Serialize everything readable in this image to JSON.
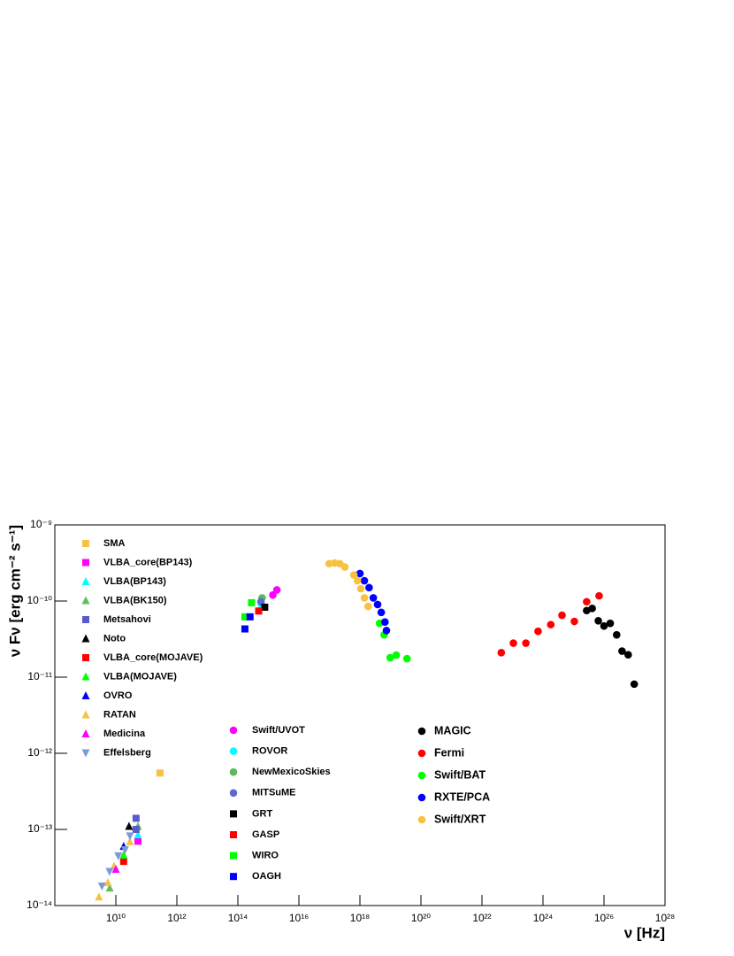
{
  "chart_data": {
    "type": "scatter",
    "x_label": "ν [Hz]",
    "y_label": "ν Fν [erg cm⁻² s⁻¹]",
    "log_x": true,
    "log_y": true,
    "grid": false,
    "xlim": [
      100000000.0,
      1e+28
    ],
    "ylim": [
      1e-14,
      1e-09
    ],
    "xticks": [
      {
        "value": 10000000000.0,
        "label": "10¹⁰"
      },
      {
        "value": 1000000000000.0,
        "label": "10¹²"
      },
      {
        "value": 100000000000000.0,
        "label": "10¹⁴"
      },
      {
        "value": 1e+16,
        "label": "10¹⁶"
      },
      {
        "value": 1e+18,
        "label": "10¹⁸"
      },
      {
        "value": 1e+20,
        "label": "10²⁰"
      },
      {
        "value": 1e+22,
        "label": "10²²"
      },
      {
        "value": 1e+24,
        "label": "10²⁴"
      },
      {
        "value": 1e+26,
        "label": "10²⁶"
      },
      {
        "value": 1e+28,
        "label": "10²⁸"
      }
    ],
    "yticks": [
      {
        "value": 1e-14,
        "label": "10⁻¹⁴"
      },
      {
        "value": 1e-13,
        "label": "10⁻¹³"
      },
      {
        "value": 1e-12,
        "label": "10⁻¹²"
      },
      {
        "value": 1e-11,
        "label": "10⁻¹¹"
      },
      {
        "value": 1e-10,
        "label": "10⁻¹⁰"
      },
      {
        "value": 1e-09,
        "label": "10⁻⁹"
      }
    ],
    "series": [
      {
        "name": "SMA",
        "color": "#f5c242",
        "marker": "square",
        "x": [
          280000000000.0
        ],
        "values": [
          5.5e-13
        ]
      },
      {
        "name": "VLBA_core(BP143)",
        "color": "#ff00ff",
        "marker": "square",
        "x": [
          53000000000.0
        ],
        "values": [
          7e-14
        ]
      },
      {
        "name": "VLBA(BP143)",
        "color": "#00ffff",
        "marker": "triangle",
        "x": [
          53000000000.0
        ],
        "values": [
          8.5e-14
        ]
      },
      {
        "name": "VLBA(BK150)",
        "color": "#5fbf5f",
        "marker": "triangle",
        "x": [
          6300000000.0,
          53000000000.0
        ],
        "values": [
          1.7e-14,
          1.1e-13
        ]
      },
      {
        "name": "Metsahovi",
        "color": "#5a5acd",
        "marker": "square",
        "x": [
          46000000000.0,
          46000000000.0
        ],
        "values": [
          1.4e-13,
          1e-13
        ]
      },
      {
        "name": "Noto",
        "color": "#000000",
        "marker": "triangle",
        "x": [
          27000000000.0
        ],
        "values": [
          1.1e-13
        ]
      },
      {
        "name": "VLBA_core(MOJAVE)",
        "color": "#ff0000",
        "marker": "square",
        "x": [
          18000000000.0
        ],
        "values": [
          3.8e-14
        ]
      },
      {
        "name": "VLBA(MOJAVE)",
        "color": "#00ff00",
        "marker": "triangle",
        "x": [
          18000000000.0
        ],
        "values": [
          4.6e-14
        ]
      },
      {
        "name": "OVRO",
        "color": "#0000ff",
        "marker": "triangle",
        "x": [
          18000000000.0
        ],
        "values": [
          6e-14
        ]
      },
      {
        "name": "RATAN",
        "color": "#f5c242",
        "marker": "triangle",
        "x": [
          2800000000.0,
          5500000000.0,
          8700000000.0,
          29000000000.0
        ],
        "values": [
          1.3e-14,
          2e-14,
          3.3e-14,
          6.9e-14
        ]
      },
      {
        "name": "Medicina",
        "color": "#ff00ff",
        "marker": "triangle",
        "x": [
          10000000000.0
        ],
        "values": [
          3e-14
        ]
      },
      {
        "name": "Effelsberg",
        "color": "#7b9bd6",
        "marker": "triangle-down",
        "x": [
          3500000000.0,
          6200000000.0,
          12000000000.0,
          20000000000.0,
          29000000000.0
        ],
        "values": [
          1.8e-14,
          2.8e-14,
          4.5e-14,
          5.4e-14,
          8.2e-14
        ]
      },
      {
        "name": "Swift/UVOT",
        "color": "#ff00ff",
        "marker": "circle",
        "x": [
          1400000000000000.0,
          1900000000000000.0
        ],
        "values": [
          1.2e-10,
          1.4e-10
        ]
      },
      {
        "name": "ROVOR",
        "color": "#00ffff",
        "marker": "circle",
        "x": [
          590000000000000.0
        ],
        "values": [
          9e-11
        ]
      },
      {
        "name": "NewMexicoSkies",
        "color": "#5cb85c",
        "marker": "circle",
        "x": [
          620000000000000.0
        ],
        "values": [
          1.1e-10
        ]
      },
      {
        "name": "MITSuME",
        "color": "#5a6ad0",
        "marker": "circle",
        "x": [
          570000000000000.0
        ],
        "values": [
          9.8e-11
        ]
      },
      {
        "name": "GRT",
        "color": "#000000",
        "marker": "square",
        "x": [
          760000000000000.0
        ],
        "values": [
          8.3e-11
        ]
      },
      {
        "name": "GASP",
        "color": "#ff0000",
        "marker": "square",
        "x": [
          480000000000000.0
        ],
        "values": [
          7.4e-11
        ]
      },
      {
        "name": "WIRO",
        "color": "#00ff00",
        "marker": "square",
        "x": [
          280000000000000.0,
          170000000000000.0
        ],
        "values": [
          9.5e-11,
          6.2e-11
        ]
      },
      {
        "name": "OAGH",
        "color": "#0000ff",
        "marker": "square",
        "x": [
          170000000000000.0,
          250000000000000.0
        ],
        "values": [
          4.3e-11,
          6.2e-11
        ]
      },
      {
        "name": "MAGIC",
        "color": "#000000",
        "marker": "circle",
        "x": [
          2.7e+25,
          4.1e+25,
          6.5e+25,
          1e+26,
          1.6e+26,
          2.6e+26,
          3.9e+26,
          6.2e+26,
          9.8e+26
        ],
        "values": [
          7.5e-11,
          8e-11,
          5.5e-11,
          4.7e-11,
          5.1e-11,
          3.6e-11,
          2.2e-11,
          1.97e-11,
          8.1e-12
        ]
      },
      {
        "name": "Fermi",
        "color": "#ff0000",
        "marker": "circle",
        "x": [
          4.3e+22,
          1.07e+23,
          2.75e+23,
          6.9e+23,
          1.8e+24,
          4.2e+24,
          1.07e+25,
          2.7e+25,
          6.9e+25
        ],
        "values": [
          2.1e-11,
          2.8e-11,
          2.8e-11,
          4e-11,
          4.9e-11,
          6.5e-11,
          5.4e-11,
          9.8e-11,
          1.17e-10
        ]
      },
      {
        "name": "Swift/BAT",
        "color": "#00ff00",
        "marker": "circle",
        "x": [
          4.4e+18,
          6.2e+18,
          9.8e+18,
          1.55e+19,
          3.5e+19
        ],
        "values": [
          5.1e-11,
          3.6e-11,
          1.8e-11,
          1.95e-11,
          1.75e-11
        ]
      },
      {
        "name": "RXTE/PCA",
        "color": "#0000ff",
        "marker": "circle",
        "x": [
          1e+18,
          1.4e+18,
          2e+18,
          2.75e+18,
          3.8e+18,
          5e+18,
          6.6e+18,
          7.4e+18
        ],
        "values": [
          2.3e-10,
          1.85e-10,
          1.5e-10,
          1.1e-10,
          9e-11,
          7.1e-11,
          5.3e-11,
          4.1e-11
        ]
      },
      {
        "name": "Swift/XRT",
        "color": "#f5c242",
        "marker": "circle",
        "x": [
          9.8e+16,
          1.48e+17,
          2.2e+17,
          3.2e+17,
          6.3e+17,
          8.3e+17,
          1.07e+18,
          1.4e+18,
          1.86e+18
        ],
        "values": [
          3.1e-10,
          3.16e-10,
          3.1e-10,
          2.8e-10,
          2.2e-10,
          1.85e-10,
          1.45e-10,
          1.1e-10,
          8.5e-11
        ]
      }
    ]
  }
}
